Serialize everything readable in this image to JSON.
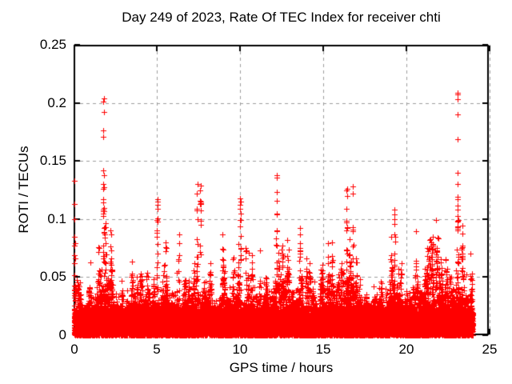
{
  "chart_data": {
    "type": "scatter",
    "title": "Day 249 of 2023, Rate Of TEC Index for receiver chti",
    "xlabel": "GPS time / hours",
    "ylabel": "ROTI / TECUs",
    "xlim": [
      0,
      25
    ],
    "ylim": [
      0,
      0.25
    ],
    "xticks": {
      "values": [
        0,
        5,
        10,
        15,
        20,
        25
      ],
      "labels": [
        "0",
        "5",
        "10",
        "15",
        "20",
        "25"
      ]
    },
    "yticks": {
      "values": [
        0,
        0.05,
        0.1,
        0.15,
        0.2,
        0.25
      ],
      "labels": [
        "0",
        "0.05",
        "0.1",
        "0.15",
        "0.2",
        "0.25"
      ]
    },
    "grid": {
      "show": true,
      "style": "dashed",
      "color": "#9e9e9e"
    },
    "legend": "none",
    "background": "#ffffff",
    "axis_color": "#000000",
    "marker": {
      "shape": "plus",
      "color": "#ff0000",
      "size": 7
    },
    "data_time_range_hours": [
      0,
      24
    ],
    "band_envelope": [
      [
        0,
        0.062
      ],
      [
        0.5,
        0.05
      ],
      [
        1,
        0.036
      ],
      [
        1.5,
        0.06
      ],
      [
        1.75,
        0.075
      ],
      [
        2,
        0.065
      ],
      [
        2.5,
        0.04
      ],
      [
        3,
        0.042
      ],
      [
        3.5,
        0.045
      ],
      [
        4,
        0.055
      ],
      [
        4.5,
        0.045
      ],
      [
        5,
        0.07
      ],
      [
        5.5,
        0.052
      ],
      [
        6,
        0.055
      ],
      [
        6.5,
        0.05
      ],
      [
        7,
        0.048
      ],
      [
        7.5,
        0.065
      ],
      [
        8,
        0.055
      ],
      [
        8.5,
        0.05
      ],
      [
        9,
        0.06
      ],
      [
        9.5,
        0.048
      ],
      [
        10,
        0.065
      ],
      [
        10.5,
        0.055
      ],
      [
        11,
        0.05
      ],
      [
        11.5,
        0.06
      ],
      [
        12,
        0.068
      ],
      [
        12.5,
        0.06
      ],
      [
        13,
        0.055
      ],
      [
        13.5,
        0.058
      ],
      [
        14,
        0.05
      ],
      [
        14.5,
        0.05
      ],
      [
        15,
        0.052
      ],
      [
        15.5,
        0.058
      ],
      [
        16,
        0.055
      ],
      [
        16.5,
        0.068
      ],
      [
        17,
        0.06
      ],
      [
        17.5,
        0.05
      ],
      [
        18,
        0.05
      ],
      [
        18.5,
        0.048
      ],
      [
        19,
        0.052
      ],
      [
        19.5,
        0.055
      ],
      [
        20,
        0.05
      ],
      [
        20.5,
        0.055
      ],
      [
        21,
        0.055
      ],
      [
        21.5,
        0.062
      ],
      [
        22,
        0.06
      ],
      [
        22.5,
        0.068
      ],
      [
        23,
        0.072
      ],
      [
        23.5,
        0.062
      ],
      [
        24,
        0.05
      ]
    ],
    "spikes": [
      {
        "t": 0.03,
        "points": [
          0.133,
          0.113,
          0.1
        ],
        "column": {
          "min": 0.028,
          "max": 0.085,
          "n": 12
        }
      },
      {
        "t": 1.78,
        "points": [
          0.204,
          0.201,
          0.192,
          0.176,
          0.171,
          0.142,
          0.138
        ],
        "column": {
          "min": 0.04,
          "max": 0.132,
          "n": 22
        }
      },
      {
        "t": 1.87,
        "points": [],
        "column": {
          "min": 0.035,
          "max": 0.105,
          "n": 12
        }
      },
      {
        "t": 2.2,
        "points": [
          0.09
        ],
        "column": {
          "min": 0.03,
          "max": 0.082,
          "n": 9
        }
      },
      {
        "t": 5.02,
        "points": [
          0.117,
          0.115,
          0.112,
          0.109
        ],
        "column": {
          "min": 0.035,
          "max": 0.102,
          "n": 14
        }
      },
      {
        "t": 5.55,
        "points": [],
        "column": {
          "min": 0.03,
          "max": 0.08,
          "n": 8
        }
      },
      {
        "t": 6.3,
        "points": [
          0.087
        ],
        "column": {
          "min": 0.03,
          "max": 0.08,
          "n": 8
        }
      },
      {
        "t": 7.42,
        "points": [
          0.13,
          0.122
        ],
        "column": {
          "min": 0.035,
          "max": 0.115,
          "n": 12
        }
      },
      {
        "t": 7.62,
        "points": [
          0.129,
          0.125
        ],
        "column": {
          "min": 0.035,
          "max": 0.118,
          "n": 13
        }
      },
      {
        "t": 8.95,
        "points": [
          0.087
        ],
        "column": {
          "min": 0.03,
          "max": 0.08,
          "n": 8
        }
      },
      {
        "t": 10.02,
        "points": [
          0.118,
          0.115,
          0.112,
          0.109,
          0.105
        ],
        "column": {
          "min": 0.035,
          "max": 0.1,
          "n": 12
        }
      },
      {
        "t": 10.35,
        "points": [],
        "column": {
          "min": 0.03,
          "max": 0.078,
          "n": 8
        }
      },
      {
        "t": 12.2,
        "points": [
          0.138,
          0.136,
          0.123,
          0.116
        ],
        "column": {
          "min": 0.035,
          "max": 0.105,
          "n": 14
        }
      },
      {
        "t": 12.55,
        "points": [],
        "column": {
          "min": 0.03,
          "max": 0.095,
          "n": 10
        }
      },
      {
        "t": 13.6,
        "points": [
          0.092,
          0.087
        ],
        "column": {
          "min": 0.03,
          "max": 0.08,
          "n": 8
        }
      },
      {
        "t": 15.55,
        "points": [
          0.08
        ],
        "column": {
          "min": 0.03,
          "max": 0.072,
          "n": 7
        }
      },
      {
        "t": 16.42,
        "points": [
          0.126,
          0.125,
          0.12,
          0.109
        ],
        "column": {
          "min": 0.035,
          "max": 0.1,
          "n": 12
        }
      },
      {
        "t": 16.8,
        "points": [
          0.128,
          0.122
        ],
        "column": {
          "min": 0.035,
          "max": 0.095,
          "n": 10
        }
      },
      {
        "t": 19.3,
        "points": [
          0.108,
          0.104,
          0.1,
          0.096
        ],
        "column": {
          "min": 0.03,
          "max": 0.09,
          "n": 10
        }
      },
      {
        "t": 21.6,
        "points": [
          0.085
        ],
        "column": {
          "min": 0.03,
          "max": 0.08,
          "n": 9
        }
      },
      {
        "t": 23.1,
        "points": [
          0.209,
          0.207,
          0.203,
          0.19,
          0.169,
          0.14,
          0.13
        ],
        "column": {
          "min": 0.035,
          "max": 0.126,
          "n": 20
        }
      },
      {
        "t": 23.35,
        "points": [],
        "column": {
          "min": 0.03,
          "max": 0.09,
          "n": 8
        }
      }
    ],
    "generation": {
      "seed": 249,
      "epoch_step_hours": 0.008333,
      "base_points_per_epoch": 5,
      "base_band_max": 0.02,
      "tail_points_per_epoch": 3,
      "tail_exponent": 1.6,
      "noise_step_hours": 0.1
    }
  }
}
